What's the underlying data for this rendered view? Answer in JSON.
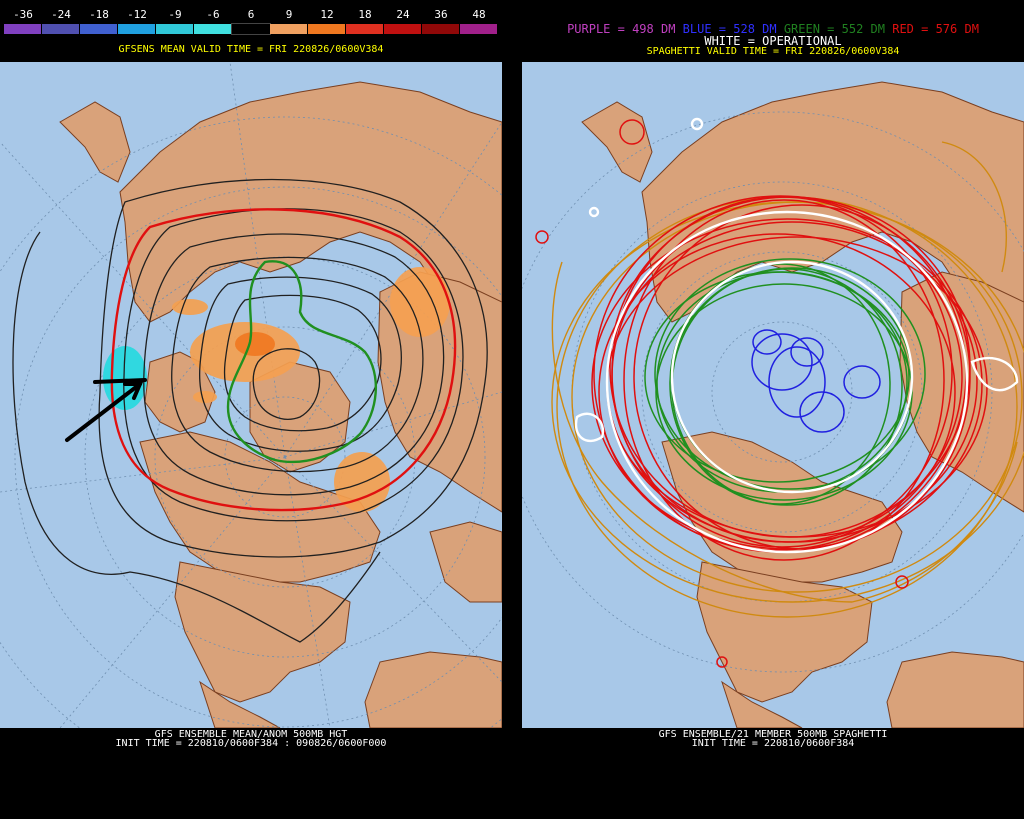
{
  "left_panel": {
    "scale_values": [
      "-36",
      "-24",
      "-18",
      "-12",
      "-9",
      "-6",
      "6",
      "9",
      "12",
      "18",
      "24",
      "36",
      "48"
    ],
    "scale_colors": [
      "#8040c0",
      "#5050b0",
      "#4060d0",
      "#20a0e0",
      "#30c8d8",
      "#40e0e0",
      "#000000",
      "#f0a060",
      "#f07820",
      "#e03020",
      "#c01010",
      "#900808",
      "#a0208a"
    ],
    "subtitle": "GFSENS MEAN VALID TIME = FRI 220826/0600V384",
    "footer_line1": "GFS ENSEMBLE MEAN/ANOM 500MB HGT",
    "footer_line2": "INIT TIME = 220810/0600F384 : 090826/0600F000"
  },
  "right_panel": {
    "legend": {
      "purple": "PURPLE = 498 DM",
      "blue": "BLUE = 528 DM",
      "green": "GREEN = 552 DM",
      "red": "RED = 576 DM"
    },
    "white_label": "WHITE = OPERATIONAL",
    "subtitle": "SPAGHETTI VALID TIME = FRI 220826/0600V384",
    "footer_line1": "GFS ENSEMBLE/21 MEMBER 500MB SPAGHETTI",
    "footer_line2": "INIT TIME = 220810/0600F384"
  },
  "colors": {
    "ocean": "#a8c8e8",
    "land": "#d9a27a",
    "border": "#7a3f20",
    "grid": "#6f8fb0",
    "contour": "#202020",
    "red_contour": "#e01010",
    "green_contour": "#209020",
    "positive_anom": "#f5a050",
    "negative_anom": "#30d8e0"
  }
}
